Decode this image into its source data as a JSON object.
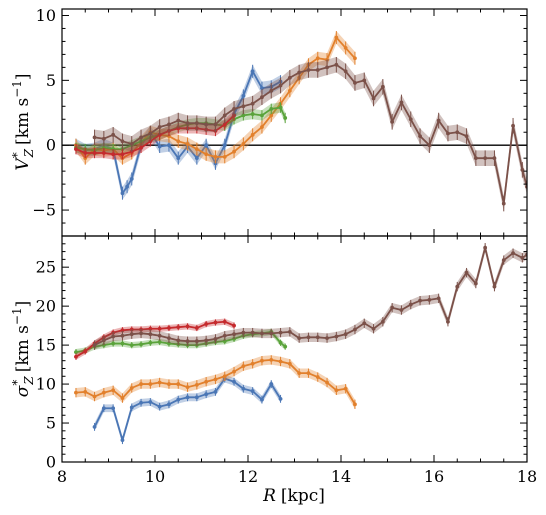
{
  "chart_data": [
    {
      "type": "line",
      "panel": "top",
      "ylabel": {
        "main": "V",
        "sup": "*",
        "sub": "Z",
        "unit": "[km s",
        "unit_sup": "−1",
        "unit_end": "]"
      },
      "xlim": [
        8,
        18
      ],
      "ylim": [
        -7,
        10.5
      ],
      "yticks": [
        -5,
        0,
        5,
        10
      ],
      "y_tick_labels": [
        "−5",
        "0",
        "5",
        "10"
      ],
      "x_tick_labels": [
        "",
        "",
        "",
        "",
        "",
        ""
      ],
      "zero_line": true,
      "grid": false,
      "series": [
        {
          "color": "#4a76b5",
          "error": 0.5,
          "x": [
            8.3,
            8.5,
            8.7,
            8.9,
            9.1,
            9.3,
            9.4,
            9.5,
            9.7,
            9.9,
            10.1,
            10.3,
            10.5,
            10.7,
            10.9,
            11.1,
            11.3,
            11.5,
            11.7,
            11.9,
            12.1,
            12.3,
            12.5,
            12.7
          ],
          "y": [
            0.0,
            -0.4,
            -0.3,
            0.0,
            -0.3,
            -3.7,
            -3.2,
            -2.6,
            0.0,
            1.0,
            -0.1,
            0.0,
            -1.0,
            -0.1,
            -1.0,
            0.0,
            -1.4,
            0.0,
            2.4,
            3.8,
            5.7,
            4.4,
            4.5,
            4.9
          ]
        },
        {
          "color": "#e2802c",
          "error": 0.5,
          "x": [
            8.3,
            8.5,
            8.7,
            8.9,
            9.1,
            9.3,
            9.5,
            9.7,
            9.9,
            10.1,
            10.3,
            10.5,
            10.7,
            10.9,
            11.1,
            11.3,
            11.5,
            11.7,
            11.9,
            12.1,
            12.3,
            12.5,
            12.7,
            12.9,
            13.1,
            13.3,
            13.5,
            13.7,
            13.9,
            14.1,
            14.3
          ],
          "y": [
            0.0,
            -1.0,
            -0.3,
            -0.4,
            -0.3,
            -1.0,
            -0.6,
            0.2,
            1.0,
            0.8,
            0.7,
            0.3,
            0.1,
            -0.3,
            -0.7,
            -0.9,
            -0.9,
            -0.5,
            0.1,
            0.8,
            1.4,
            2.3,
            3.2,
            4.2,
            5.2,
            6.2,
            6.7,
            6.6,
            8.3,
            7.5,
            6.7
          ]
        },
        {
          "color": "#5aa33b",
          "error": 0.4,
          "x": [
            8.3,
            8.5,
            8.7,
            8.9,
            9.1,
            9.3,
            9.5,
            9.7,
            9.9,
            10.1,
            10.3,
            10.5,
            10.7,
            10.9,
            11.1,
            11.3,
            11.5,
            11.7,
            11.9,
            12.1,
            12.3,
            12.5,
            12.7,
            12.8
          ],
          "y": [
            -0.2,
            -0.3,
            -0.4,
            -0.2,
            -0.3,
            -0.3,
            0.0,
            0.3,
            0.6,
            0.8,
            1.1,
            1.4,
            1.6,
            1.7,
            1.7,
            1.6,
            1.5,
            2.0,
            2.3,
            2.4,
            2.3,
            2.8,
            2.9,
            2.1
          ]
        },
        {
          "color": "#c52a2d",
          "error": 0.4,
          "x": [
            8.3,
            8.5,
            8.7,
            8.9,
            9.1,
            9.3,
            9.5,
            9.7,
            9.9,
            10.1,
            10.3,
            10.5,
            10.7,
            10.9,
            11.1,
            11.3,
            11.5,
            11.7
          ],
          "y": [
            -0.3,
            -0.6,
            -0.6,
            -0.6,
            -0.7,
            -0.7,
            -0.5,
            -0.2,
            0.3,
            0.8,
            1.1,
            1.3,
            1.3,
            1.3,
            1.2,
            1.1,
            1.6,
            2.3
          ]
        },
        {
          "color": "#7b5149",
          "error": 0.6,
          "x": [
            8.7,
            8.9,
            9.1,
            9.3,
            9.5,
            9.7,
            9.9,
            10.1,
            10.3,
            10.5,
            10.7,
            10.9,
            11.1,
            11.3,
            11.5,
            11.7,
            11.9,
            12.1,
            12.3,
            12.5,
            12.7,
            12.9,
            13.1,
            13.3,
            13.5,
            13.7,
            13.9,
            14.1,
            14.3,
            14.5,
            14.7,
            14.9,
            15.1,
            15.3,
            15.5,
            15.7,
            15.9,
            16.1,
            16.3,
            16.5,
            16.7,
            16.9,
            17.1,
            17.3,
            17.5,
            17.7,
            17.9,
            18.0
          ],
          "y": [
            0.6,
            0.5,
            0.8,
            0.3,
            0.1,
            0.6,
            0.9,
            1.4,
            1.6,
            1.9,
            1.7,
            1.7,
            1.6,
            1.6,
            2.3,
            2.8,
            3.0,
            3.2,
            3.7,
            4.2,
            4.6,
            5.2,
            5.6,
            5.8,
            5.8,
            6.0,
            6.2,
            5.7,
            4.8,
            5.0,
            3.6,
            4.5,
            1.8,
            3.3,
            2.0,
            0.7,
            0.0,
            1.9,
            0.9,
            1.0,
            0.7,
            -1.0,
            -1.0,
            -1.0,
            -4.5,
            1.5,
            -1.9,
            -3.2
          ]
        }
      ]
    },
    {
      "type": "line",
      "panel": "bottom",
      "ylabel": {
        "main": "σ",
        "sup": "*",
        "sub": "Z",
        "unit": "[km s",
        "unit_sup": "−1",
        "unit_end": "]"
      },
      "xlabel": {
        "main": "R",
        "unit": "[kpc]"
      },
      "xlim": [
        8,
        18
      ],
      "ylim": [
        0,
        29
      ],
      "xticks": [
        8,
        10,
        12,
        14,
        16,
        18
      ],
      "x_tick_labels": [
        "8",
        "10",
        "12",
        "14",
        "16",
        "18"
      ],
      "yticks": [
        0,
        5,
        10,
        15,
        20,
        25
      ],
      "y_tick_labels": [
        "0",
        "5",
        "10",
        "15",
        "20",
        "25"
      ],
      "grid": false,
      "series": [
        {
          "color": "#4a76b5",
          "error": 0.5,
          "x": [
            8.7,
            8.9,
            9.1,
            9.3,
            9.5,
            9.7,
            9.9,
            10.1,
            10.3,
            10.5,
            10.7,
            10.9,
            11.1,
            11.3,
            11.5,
            11.7,
            11.9,
            12.1,
            12.3,
            12.5,
            12.7
          ],
          "y": [
            4.5,
            6.9,
            6.9,
            2.8,
            7.0,
            7.6,
            7.7,
            7.1,
            7.4,
            8.0,
            8.3,
            8.3,
            8.7,
            9.0,
            10.7,
            10.3,
            9.4,
            9.1,
            8.0,
            10.0,
            8.1
          ]
        },
        {
          "color": "#e2802c",
          "error": 0.6,
          "x": [
            8.3,
            8.5,
            8.7,
            8.9,
            9.1,
            9.3,
            9.5,
            9.7,
            9.9,
            10.1,
            10.3,
            10.5,
            10.7,
            10.9,
            11.1,
            11.3,
            11.5,
            11.7,
            11.9,
            12.1,
            12.3,
            12.5,
            12.7,
            12.9,
            13.1,
            13.3,
            13.5,
            13.7,
            13.9,
            14.1,
            14.3
          ],
          "y": [
            8.9,
            9.0,
            8.4,
            8.9,
            9.2,
            8.2,
            9.5,
            10.0,
            10.0,
            10.2,
            10.0,
            10.0,
            9.6,
            9.9,
            10.3,
            10.6,
            11.0,
            11.6,
            12.3,
            12.6,
            13.0,
            13.1,
            12.9,
            12.6,
            11.4,
            11.4,
            10.9,
            10.2,
            9.2,
            9.4,
            7.4
          ]
        },
        {
          "color": "#5aa33b",
          "error": 0.4,
          "x": [
            8.3,
            8.5,
            8.7,
            8.9,
            9.1,
            9.3,
            9.5,
            9.7,
            9.9,
            10.1,
            10.3,
            10.5,
            10.7,
            10.9,
            11.1,
            11.3,
            11.5,
            11.7,
            11.9,
            12.1,
            12.3,
            12.5,
            12.7,
            12.8
          ],
          "y": [
            14.1,
            14.3,
            14.8,
            15.0,
            15.2,
            15.2,
            15.0,
            15.1,
            15.3,
            15.4,
            15.2,
            15.1,
            15.0,
            15.0,
            15.2,
            15.4,
            15.5,
            15.8,
            16.2,
            16.4,
            16.5,
            16.7,
            15.3,
            14.8
          ]
        },
        {
          "color": "#c52a2d",
          "error": 0.4,
          "x": [
            8.3,
            8.5,
            8.7,
            8.9,
            9.1,
            9.3,
            9.5,
            9.7,
            9.9,
            10.1,
            10.3,
            10.5,
            10.7,
            10.9,
            11.1,
            11.3,
            11.5,
            11.7
          ],
          "y": [
            13.5,
            14.2,
            15.2,
            16.0,
            16.6,
            16.9,
            17.0,
            17.0,
            17.1,
            17.1,
            17.2,
            17.3,
            17.4,
            17.2,
            17.7,
            17.9,
            18.0,
            17.5
          ]
        },
        {
          "color": "#7b5149",
          "error": 0.6,
          "x": [
            8.7,
            8.9,
            9.1,
            9.3,
            9.5,
            9.7,
            9.9,
            10.1,
            10.3,
            10.5,
            10.7,
            10.9,
            11.1,
            11.3,
            11.5,
            11.7,
            11.9,
            12.1,
            12.3,
            12.5,
            12.7,
            12.9,
            13.1,
            13.3,
            13.5,
            13.7,
            13.9,
            14.1,
            14.3,
            14.5,
            14.7,
            14.9,
            15.1,
            15.3,
            15.5,
            15.7,
            15.9,
            16.1,
            16.3,
            16.5,
            16.7,
            16.9,
            17.1,
            17.3,
            17.5,
            17.7,
            17.9,
            18.0
          ],
          "y": [
            15.0,
            15.6,
            16.1,
            16.2,
            16.4,
            16.5,
            16.4,
            16.2,
            15.9,
            15.6,
            15.5,
            15.5,
            15.6,
            15.8,
            16.2,
            16.4,
            16.6,
            16.6,
            16.5,
            16.5,
            16.6,
            16.7,
            15.9,
            16.0,
            16.0,
            15.9,
            16.1,
            16.4,
            17.0,
            17.8,
            17.1,
            18.0,
            19.8,
            19.5,
            20.2,
            20.7,
            20.8,
            21.0,
            18.0,
            22.5,
            24.3,
            22.9,
            27.5,
            22.5,
            25.9,
            26.8,
            26.2,
            26.6
          ]
        }
      ]
    }
  ]
}
